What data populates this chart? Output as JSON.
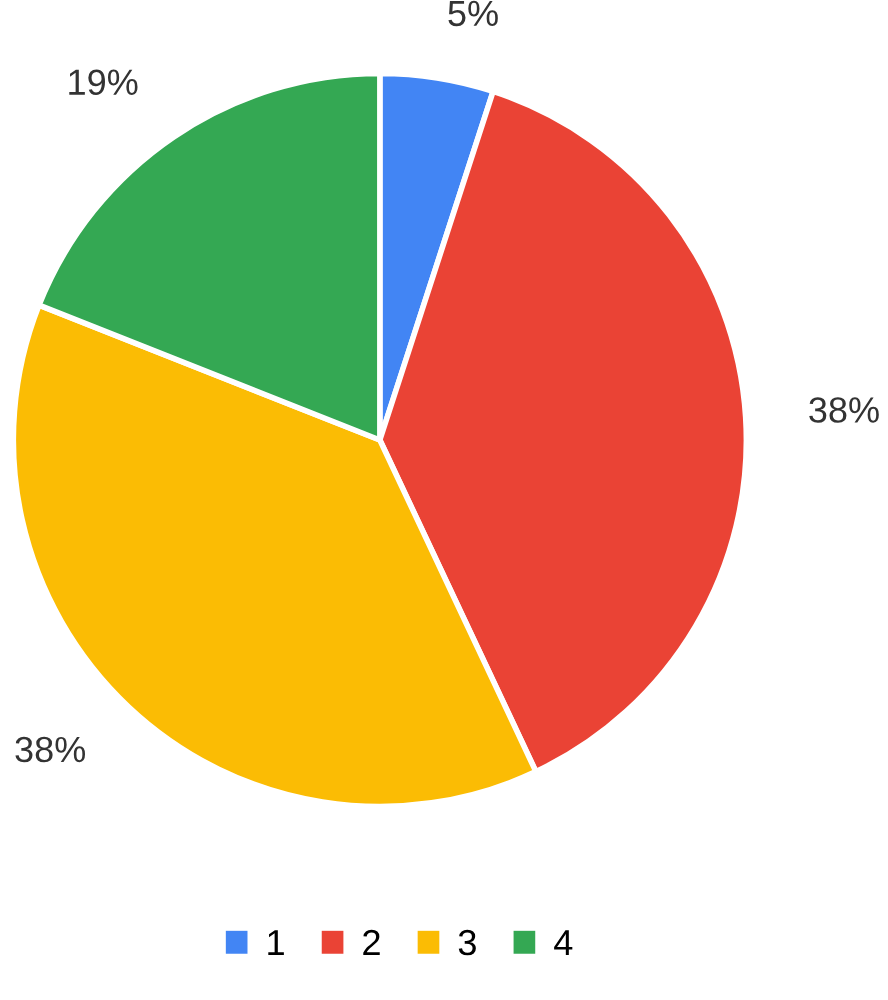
{
  "chart_data": {
    "type": "pie",
    "categories": [
      "1",
      "2",
      "3",
      "4"
    ],
    "values": [
      5,
      38,
      38,
      19
    ],
    "colors": [
      "#4285f4",
      "#ea4335",
      "#fbbc04",
      "#34a853"
    ],
    "value_labels": [
      "5%",
      "38%",
      "38%",
      "19%"
    ],
    "legend": "bottom"
  }
}
